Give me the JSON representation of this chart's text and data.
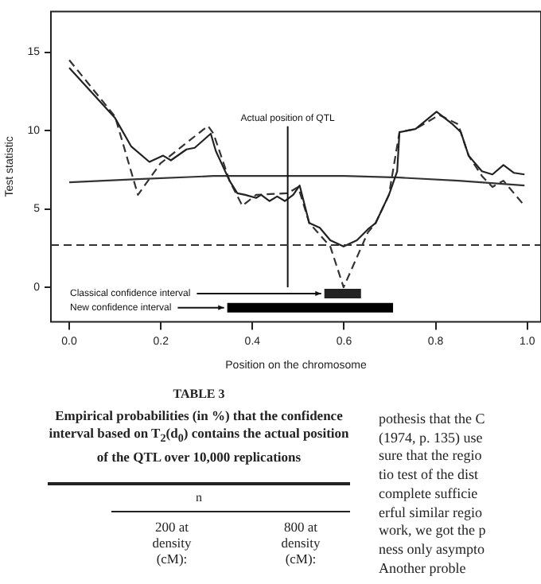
{
  "chart_data": {
    "type": "line",
    "xlabel": "Position on the chromosome",
    "ylabel": "Test statistic",
    "xlim": [
      -0.04,
      1.03
    ],
    "ylim": [
      -2.2,
      17.6
    ],
    "xticks": [
      {
        "value": 0,
        "label": "0.0"
      },
      {
        "value": 0.2,
        "label": "0.2"
      },
      {
        "value": 0.4,
        "label": "0.4"
      },
      {
        "value": 0.6,
        "label": "0.6"
      },
      {
        "value": 0.8,
        "label": "0.8"
      },
      {
        "value": 1,
        "label": "1.0"
      }
    ],
    "yticks": [
      0,
      5,
      10,
      15
    ],
    "grid": false,
    "legend": false,
    "marker": "none",
    "series": [
      {
        "color": "#222222",
        "line_style": "solid",
        "x": [
          0,
          0.1,
          0.135,
          0.175,
          0.205,
          0.222,
          0.256,
          0.274,
          0.309,
          0.32,
          0.35,
          0.367,
          0.384,
          0.408,
          0.419,
          0.437,
          0.454,
          0.471,
          0.489,
          0.503,
          0.524,
          0.547,
          0.57,
          0.599,
          0.628,
          0.652,
          0.669,
          0.698,
          0.716,
          0.721,
          0.756,
          0.802,
          0.837,
          0.855,
          0.872,
          0.901,
          0.924,
          0.948,
          0.971,
          0.994
        ],
        "values": [
          14.0,
          10.8,
          9.0,
          8.0,
          8.4,
          8.1,
          8.8,
          8.9,
          9.8,
          8.7,
          6.8,
          6.0,
          5.9,
          5.7,
          5.9,
          5.5,
          5.8,
          5.5,
          5.9,
          6.5,
          4.1,
          3.8,
          3.0,
          2.6,
          3.0,
          3.7,
          4.1,
          5.9,
          7.4,
          9.9,
          10.1,
          11.2,
          10.4,
          9.9,
          8.4,
          7.4,
          7.2,
          7.8,
          7.3,
          7.2
        ]
      },
      {
        "color": "#333333",
        "line_style": "dashed",
        "x": [
          0,
          0.1,
          0.15,
          0.199,
          0.303,
          0.315,
          0.35,
          0.378,
          0.408,
          0.477,
          0.5,
          0.524,
          0.57,
          0.599,
          0.652,
          0.669,
          0.698,
          0.721,
          0.756,
          0.808,
          0.849,
          0.872,
          0.901,
          0.924,
          0.948,
          0.994
        ],
        "values": [
          14.5,
          10.9,
          5.9,
          7.9,
          10.3,
          9.8,
          6.8,
          5.2,
          5.9,
          6.0,
          6.4,
          4.1,
          2.6,
          0.0,
          3.5,
          4.1,
          5.9,
          9.9,
          10.1,
          11.0,
          10.4,
          8.4,
          7.1,
          6.4,
          6.8,
          5.2
        ]
      },
      {
        "color": "#333333",
        "line_style": "solid",
        "x": [
          0,
          0.15,
          0.315,
          0.477,
          0.6,
          0.721,
          0.85,
          0.994
        ],
        "values": [
          6.7,
          6.9,
          7.1,
          7.1,
          7.1,
          7.0,
          6.8,
          6.5
        ]
      },
      {
        "color": "#222222",
        "line_style": "solid",
        "x": [
          0.557,
          0.637
        ],
        "values": [
          -0.4,
          -0.4
        ]
      },
      {
        "color": "#000000",
        "line_style": "solid",
        "x": [
          0.345,
          0.707
        ],
        "values": [
          -1.3,
          -1.3
        ]
      }
    ],
    "ref_lines": [
      {
        "axis": "x",
        "value": 0.477,
        "label": "Actual position of QTL"
      },
      {
        "axis": "y",
        "value": 2.7,
        "color": "#333333",
        "line_style": "dashed"
      }
    ],
    "annotations": [
      {
        "text": "Classical confidence interval",
        "x": 0.557,
        "y": -0.4
      },
      {
        "text": "New confidence interval",
        "x": 0.345,
        "y": -1.3
      },
      "TABLE 3",
      "Empirical probabilities (in %) that the confidence interval based on T$_{2}$(d$_{0}$) contains the actual position of the QTL over 10,000 replications",
      "n",
      "200 at density (cM):",
      "800 at density (cM):",
      "pothesis that the C",
      "(1974, p. 135) use",
      "sure that the regio",
      "tio test of the dist",
      "complete sufficie",
      "erful similar regio",
      "work, we got the p",
      "ness only asympto",
      "Another proble"
    ]
  }
}
